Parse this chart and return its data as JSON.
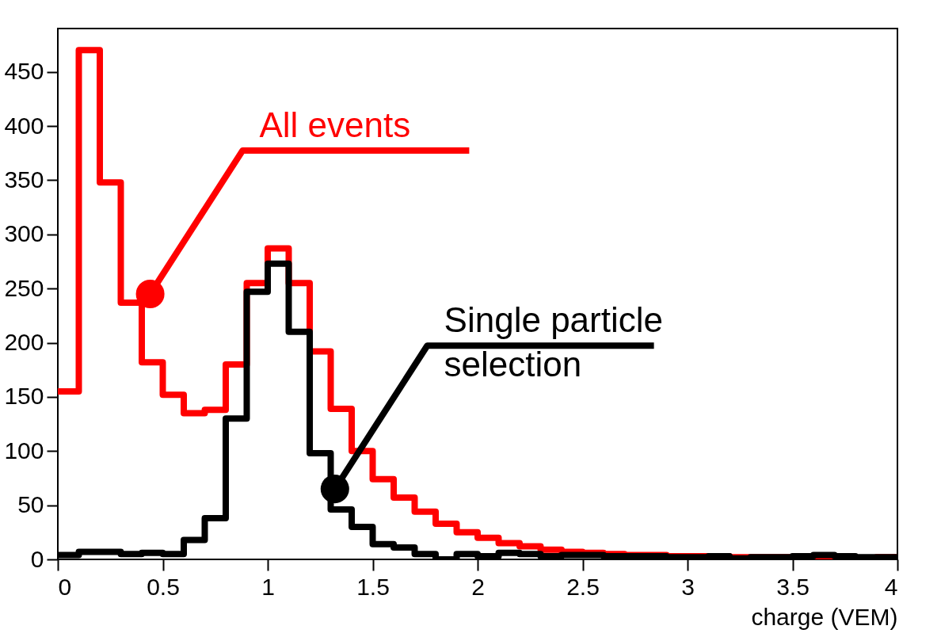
{
  "chart_data": {
    "type": "histogram",
    "xlabel": "charge (VEM)",
    "bins": [
      0,
      0.1,
      0.2,
      0.3,
      0.4,
      0.5,
      0.6,
      0.7,
      0.8,
      0.9,
      1.0,
      1.1,
      1.2,
      1.3,
      1.4,
      1.5,
      1.6,
      1.7,
      1.8,
      1.9,
      2.0,
      2.1,
      2.2,
      2.3,
      2.4,
      2.5,
      2.6,
      2.7,
      2.8,
      2.9,
      3.0,
      3.1,
      3.2,
      3.3,
      3.4,
      3.5,
      3.6,
      3.7,
      3.8,
      3.9,
      4.0
    ],
    "series": [
      {
        "color": "#ff0000",
        "values": [
          155,
          470,
          348,
          237,
          182,
          152,
          135,
          138,
          180,
          255,
          287,
          255,
          192,
          139,
          100,
          74,
          57,
          44,
          33,
          25,
          20,
          15,
          12,
          9,
          7,
          6,
          5,
          4,
          4,
          3,
          3,
          3,
          2,
          2,
          2,
          2,
          1,
          1,
          1,
          2
        ]
      },
      {
        "color": "#000000",
        "values": [
          4,
          7,
          7,
          5,
          6,
          5,
          18,
          38,
          130,
          247,
          273,
          210,
          98,
          46,
          30,
          14,
          11,
          5,
          0,
          5,
          3,
          6,
          5,
          3,
          4,
          4,
          3,
          3,
          3,
          2,
          2,
          3,
          1,
          2,
          2,
          3,
          4,
          3,
          2,
          2
        ]
      }
    ],
    "annotations": [
      {
        "text": "All events",
        "x": 0.44,
        "y": 245
      },
      {
        "text": "Single particle selection",
        "x": 1.32,
        "y": 65
      }
    ],
    "xlim": [
      0,
      4
    ],
    "ylim": [
      0,
      490
    ],
    "xticks": [
      0,
      0.5,
      1,
      1.5,
      2,
      2.5,
      3,
      3.5,
      4
    ],
    "yticks": [
      0,
      50,
      100,
      150,
      200,
      250,
      300,
      350,
      400,
      450
    ],
    "grid": false
  }
}
